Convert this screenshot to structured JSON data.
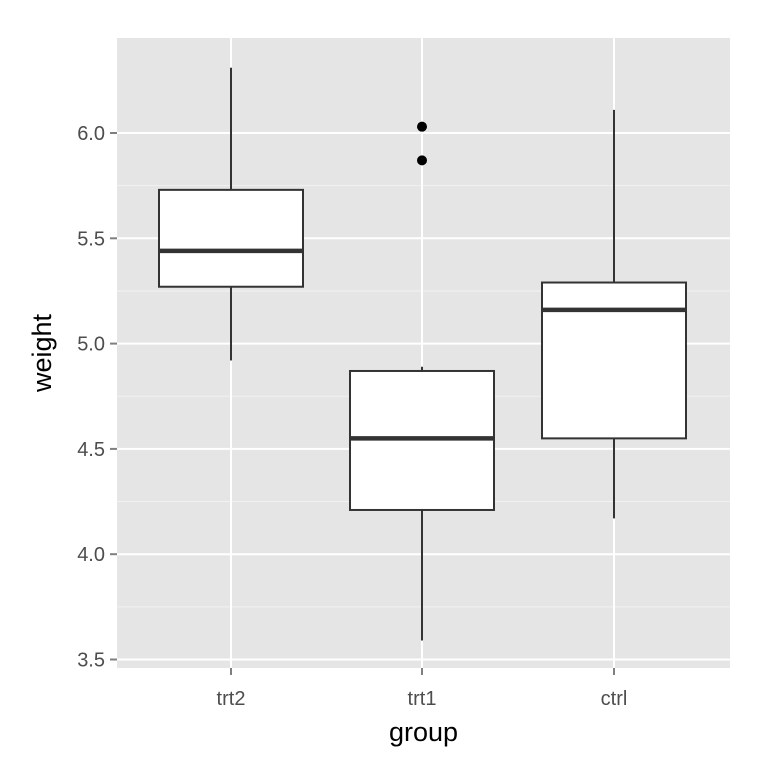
{
  "chart_data": {
    "type": "boxplot",
    "title": "",
    "xlabel": "group",
    "ylabel": "weight",
    "categories": [
      "trt2",
      "trt1",
      "ctrl"
    ],
    "ylim": [
      3.45,
      6.35
    ],
    "y_ticks": [
      3.5,
      4.0,
      4.5,
      5.0,
      5.5,
      6.0
    ],
    "y_tick_labels": [
      "3.5",
      "4.0",
      "4.5",
      "5.0",
      "5.5",
      "6.0"
    ],
    "grid": true,
    "boxes": [
      {
        "category": "trt2",
        "whisker_low": 4.92,
        "q1": 5.27,
        "median": 5.44,
        "q3": 5.73,
        "whisker_high": 6.31,
        "outliers": []
      },
      {
        "category": "trt1",
        "whisker_low": 3.59,
        "q1": 4.21,
        "median": 4.55,
        "q3": 4.87,
        "whisker_high": 4.89,
        "outliers": [
          5.87,
          6.03
        ]
      },
      {
        "category": "ctrl",
        "whisker_low": 4.17,
        "q1": 4.55,
        "median": 5.16,
        "q3": 5.29,
        "whisker_high": 6.11,
        "outliers": []
      }
    ],
    "colors": {
      "panel_background": "#e5e5e5",
      "major_grid": "#ffffff",
      "minor_grid": "#f2f2f2",
      "box_fill": "#ffffff",
      "box_stroke": "#333333",
      "outlier": "#000000",
      "tick_mark": "#7f7f7f",
      "tick_label": "#4d4d4d"
    }
  }
}
